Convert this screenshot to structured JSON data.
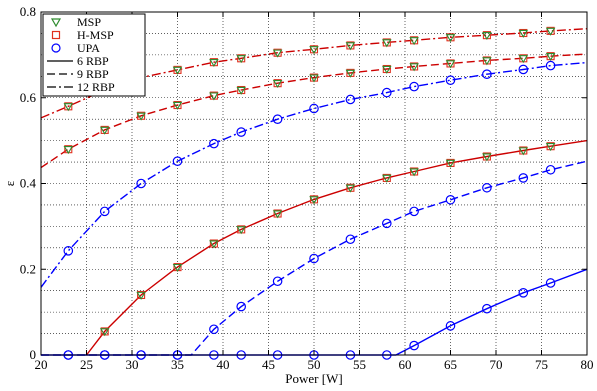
{
  "chart_data": {
    "type": "line",
    "title": "",
    "xlabel": "Power [W]",
    "ylabel": "ε",
    "xlim": [
      20,
      80
    ],
    "ylim": [
      0,
      0.8
    ],
    "xticks": [
      20,
      25,
      30,
      35,
      40,
      45,
      50,
      55,
      60,
      65,
      70,
      75,
      80
    ],
    "yticks": [
      0,
      0.2,
      0.4,
      0.6,
      0.8
    ],
    "ytick_labels": [
      "0",
      "0.2",
      "0.4",
      "0.6",
      "0.8"
    ],
    "grid": "dotted",
    "legend_position": "top-left",
    "legend": [
      {
        "label": "MSP",
        "kind": "marker",
        "marker": "triangle-down",
        "color": "#2e8b2e"
      },
      {
        "label": "H-MSP",
        "kind": "marker",
        "marker": "square",
        "color": "#e0301e"
      },
      {
        "label": "UPA",
        "kind": "marker",
        "marker": "circle",
        "color": "#0000ff"
      },
      {
        "label": "6 RBP",
        "kind": "line",
        "dash": "solid",
        "color": "#000000"
      },
      {
        "label": "9 RBP",
        "kind": "line",
        "dash": "dashed",
        "color": "#000000"
      },
      {
        "label": "12 RBP",
        "kind": "line",
        "dash": "dashdot",
        "color": "#000000"
      }
    ],
    "marker_x": [
      23,
      27,
      31,
      35,
      39,
      42,
      46,
      50,
      54,
      58,
      61,
      65,
      69,
      73,
      76
    ],
    "series": [
      {
        "method": "MSP/H-MSP",
        "rbp": "6 RBP",
        "color": "#cc0000",
        "dash": "solid",
        "markers": "msp",
        "x": [
          25,
          27,
          31,
          35,
          39,
          42,
          46,
          50,
          54,
          58,
          61,
          65,
          69,
          73,
          76,
          80
        ],
        "y": [
          0,
          0.055,
          0.14,
          0.205,
          0.26,
          0.293,
          0.33,
          0.363,
          0.39,
          0.413,
          0.428,
          0.448,
          0.463,
          0.477,
          0.487,
          0.5
        ]
      },
      {
        "method": "MSP/H-MSP",
        "rbp": "9 RBP",
        "color": "#cc0000",
        "dash": "dashed",
        "markers": "msp",
        "x": [
          20,
          23,
          27,
          31,
          35,
          39,
          42,
          46,
          50,
          54,
          58,
          61,
          65,
          69,
          73,
          76,
          80
        ],
        "y": [
          0.437,
          0.48,
          0.525,
          0.558,
          0.583,
          0.605,
          0.618,
          0.634,
          0.647,
          0.658,
          0.667,
          0.673,
          0.68,
          0.687,
          0.692,
          0.697,
          0.702
        ]
      },
      {
        "method": "MSP/H-MSP",
        "rbp": "12 RBP",
        "color": "#cc0000",
        "dash": "dashdot",
        "markers": "msp",
        "x": [
          20,
          23,
          27,
          31,
          35,
          39,
          42,
          46,
          50,
          54,
          58,
          61,
          65,
          69,
          73,
          76,
          80
        ],
        "y": [
          0.553,
          0.58,
          0.618,
          0.647,
          0.665,
          0.683,
          0.692,
          0.705,
          0.713,
          0.722,
          0.729,
          0.734,
          0.741,
          0.746,
          0.751,
          0.756,
          0.761
        ]
      },
      {
        "method": "UPA",
        "rbp": "6 RBP",
        "color": "#0000ff",
        "dash": "solid",
        "markers": "upa",
        "x": [
          20,
          23,
          27,
          31,
          35,
          39,
          42,
          46,
          50,
          54,
          58,
          59,
          61,
          65,
          69,
          73,
          76,
          80
        ],
        "y": [
          0,
          0,
          0,
          0,
          0,
          0,
          0,
          0,
          0,
          0,
          0,
          0,
          0.022,
          0.068,
          0.108,
          0.145,
          0.168,
          0.2
        ]
      },
      {
        "method": "UPA",
        "rbp": "9 RBP",
        "color": "#0000ff",
        "dash": "dashed",
        "markers": "upa",
        "x": [
          20,
          23,
          27,
          31,
          35,
          36.5,
          39,
          42,
          46,
          50,
          54,
          58,
          61,
          65,
          69,
          73,
          76,
          80
        ],
        "y": [
          0,
          0,
          0,
          0,
          0,
          0,
          0.06,
          0.113,
          0.172,
          0.225,
          0.27,
          0.307,
          0.335,
          0.362,
          0.39,
          0.413,
          0.432,
          0.452
        ]
      },
      {
        "method": "UPA",
        "rbp": "12 RBP",
        "color": "#0000ff",
        "dash": "dashdot",
        "markers": "upa",
        "x": [
          20,
          23,
          27,
          31,
          35,
          39,
          42,
          46,
          50,
          54,
          58,
          61,
          65,
          69,
          73,
          76,
          80
        ],
        "y": [
          0.158,
          0.243,
          0.335,
          0.4,
          0.452,
          0.493,
          0.52,
          0.55,
          0.575,
          0.596,
          0.612,
          0.626,
          0.641,
          0.655,
          0.666,
          0.675,
          0.682
        ]
      }
    ]
  }
}
